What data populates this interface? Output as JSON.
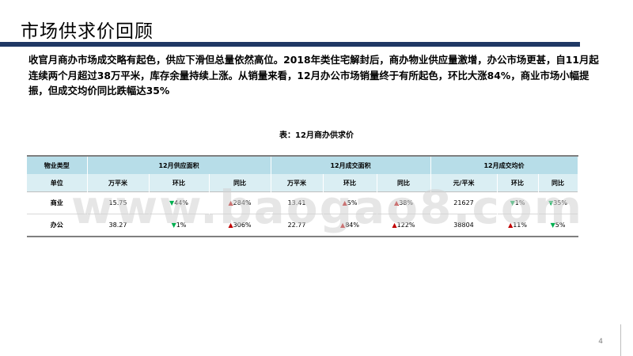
{
  "title": "市场供求价回顾",
  "summary": "收官月商办市场成交略有起色，供应下滑但总量依然高位。2018年类住宅解封后，商办物业供应量激增，办公市场更甚，自11月起连续两个月超过38万平米，库存余量持续上涨。从销量来看，12月办公市场销量终于有所起色，环比大涨84%，商业市场小幅提振，但成交均价同比跌幅达35%",
  "table": {
    "caption": "表：12月商办供求价",
    "header1": {
      "type": "物业类型",
      "supply": "12月供应面积",
      "deal": "12月成交面积",
      "price": "12月成交均价"
    },
    "header2": {
      "unit": "单位",
      "cols": [
        "万平米",
        "环比",
        "同比",
        "万平米",
        "环比",
        "同比",
        "元/平米",
        "环比",
        "同比"
      ]
    },
    "rows": [
      {
        "label": "商业",
        "cells": [
          {
            "text": "15.75",
            "dir": ""
          },
          {
            "text": "44%",
            "dir": "down"
          },
          {
            "text": "284%",
            "dir": "up"
          },
          {
            "text": "13.41",
            "dir": ""
          },
          {
            "text": "5%",
            "dir": "up"
          },
          {
            "text": "38%",
            "dir": "up"
          },
          {
            "text": "21627",
            "dir": ""
          },
          {
            "text": "1%",
            "dir": "down"
          },
          {
            "text": "35%",
            "dir": "down"
          }
        ]
      },
      {
        "label": "办公",
        "cells": [
          {
            "text": "38.27",
            "dir": ""
          },
          {
            "text": "1%",
            "dir": "down"
          },
          {
            "text": "306%",
            "dir": "up"
          },
          {
            "text": "22.77",
            "dir": ""
          },
          {
            "text": "84%",
            "dir": "up"
          },
          {
            "text": "122%",
            "dir": "up"
          },
          {
            "text": "38804",
            "dir": ""
          },
          {
            "text": "11%",
            "dir": "up"
          },
          {
            "text": "5%",
            "dir": "down"
          }
        ]
      }
    ]
  },
  "watermark": "www.baogao8.com",
  "page_number": "4",
  "colors": {
    "title_rule": "#1f3864",
    "header_dark": "#b7dde8",
    "header_light": "#daeef3",
    "up_arrow": "#c00000",
    "down_arrow": "#00b050"
  },
  "icons": {
    "up": "up-arrow-icon",
    "down": "down-arrow-icon"
  }
}
